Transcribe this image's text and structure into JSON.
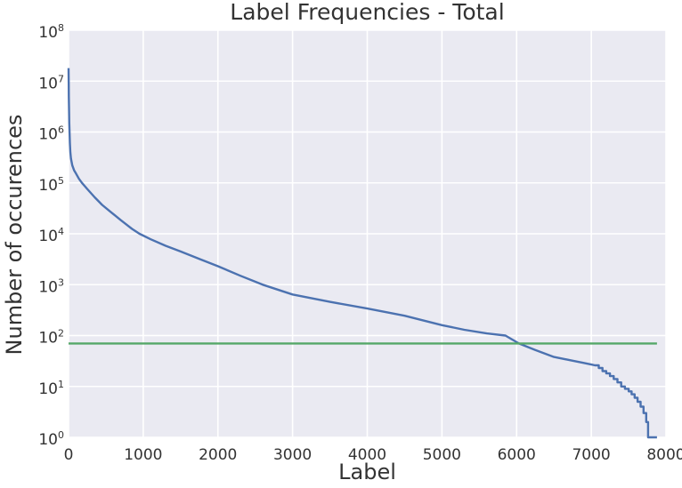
{
  "chart_data": {
    "type": "line",
    "title": "Label Frequencies - Total",
    "xlabel": "Label",
    "ylabel": "Number of occurences",
    "xlim": [
      0,
      8000
    ],
    "ylim": [
      1,
      100000000
    ],
    "yscale": "log",
    "grid": true,
    "legend": "none",
    "colors": {
      "plot_background": "#EAEAF2",
      "grid": "#FFFFFF",
      "text": "#333333",
      "curve": "#4C72B0",
      "threshold": "#55A868"
    },
    "x_ticks": [
      0,
      1000,
      2000,
      3000,
      4000,
      5000,
      6000,
      7000,
      8000
    ],
    "y_tick_base": "10",
    "y_tick_exponents": [
      0,
      1,
      2,
      3,
      4,
      5,
      6,
      7,
      8
    ],
    "series": [
      {
        "name": "label-frequency-curve",
        "color": "#4C72B0",
        "line_width": 2.4,
        "points": [
          [
            0,
            18000000
          ],
          [
            2,
            9000000
          ],
          [
            4,
            5000000
          ],
          [
            7,
            2500000
          ],
          [
            10,
            1500000
          ],
          [
            14,
            900000
          ],
          [
            18,
            600000
          ],
          [
            24,
            400000
          ],
          [
            32,
            300000
          ],
          [
            50,
            220000
          ],
          [
            75,
            175000
          ],
          [
            100,
            152000
          ],
          [
            140,
            120000
          ],
          [
            180,
            100000
          ],
          [
            250,
            76000
          ],
          [
            350,
            52000
          ],
          [
            450,
            37000
          ],
          [
            550,
            28000
          ],
          [
            700,
            18500
          ],
          [
            850,
            12500
          ],
          [
            950,
            10000
          ],
          [
            1100,
            7800
          ],
          [
            1300,
            5800
          ],
          [
            1500,
            4500
          ],
          [
            1750,
            3200
          ],
          [
            2000,
            2300
          ],
          [
            2300,
            1500
          ],
          [
            2600,
            1000
          ],
          [
            3000,
            640
          ],
          [
            3500,
            460
          ],
          [
            4000,
            340
          ],
          [
            4500,
            245
          ],
          [
            5000,
            160
          ],
          [
            5300,
            130
          ],
          [
            5600,
            110
          ],
          [
            5850,
            100
          ],
          [
            6030,
            70
          ],
          [
            6250,
            52
          ],
          [
            6500,
            38
          ],
          [
            6750,
            32
          ],
          [
            6900,
            29
          ],
          [
            7000,
            27
          ],
          [
            7050,
            26
          ],
          [
            7100,
            26
          ],
          [
            7100,
            23
          ],
          [
            7150,
            23
          ],
          [
            7150,
            20
          ],
          [
            7200,
            20
          ],
          [
            7200,
            18
          ],
          [
            7250,
            18
          ],
          [
            7250,
            16
          ],
          [
            7300,
            16
          ],
          [
            7300,
            14
          ],
          [
            7350,
            14
          ],
          [
            7350,
            12
          ],
          [
            7400,
            12
          ],
          [
            7400,
            10
          ],
          [
            7450,
            10
          ],
          [
            7450,
            9
          ],
          [
            7500,
            9
          ],
          [
            7500,
            8
          ],
          [
            7540,
            8
          ],
          [
            7540,
            7
          ],
          [
            7580,
            7
          ],
          [
            7580,
            6
          ],
          [
            7620,
            6
          ],
          [
            7620,
            5
          ],
          [
            7660,
            5
          ],
          [
            7660,
            4
          ],
          [
            7700,
            4
          ],
          [
            7700,
            3
          ],
          [
            7735,
            3
          ],
          [
            7735,
            2
          ],
          [
            7760,
            2
          ],
          [
            7760,
            1
          ],
          [
            7880,
            1
          ]
        ]
      },
      {
        "name": "threshold-line",
        "color": "#55A868",
        "line_width": 2.4,
        "points": [
          [
            0,
            70
          ],
          [
            7880,
            70
          ]
        ]
      }
    ]
  }
}
